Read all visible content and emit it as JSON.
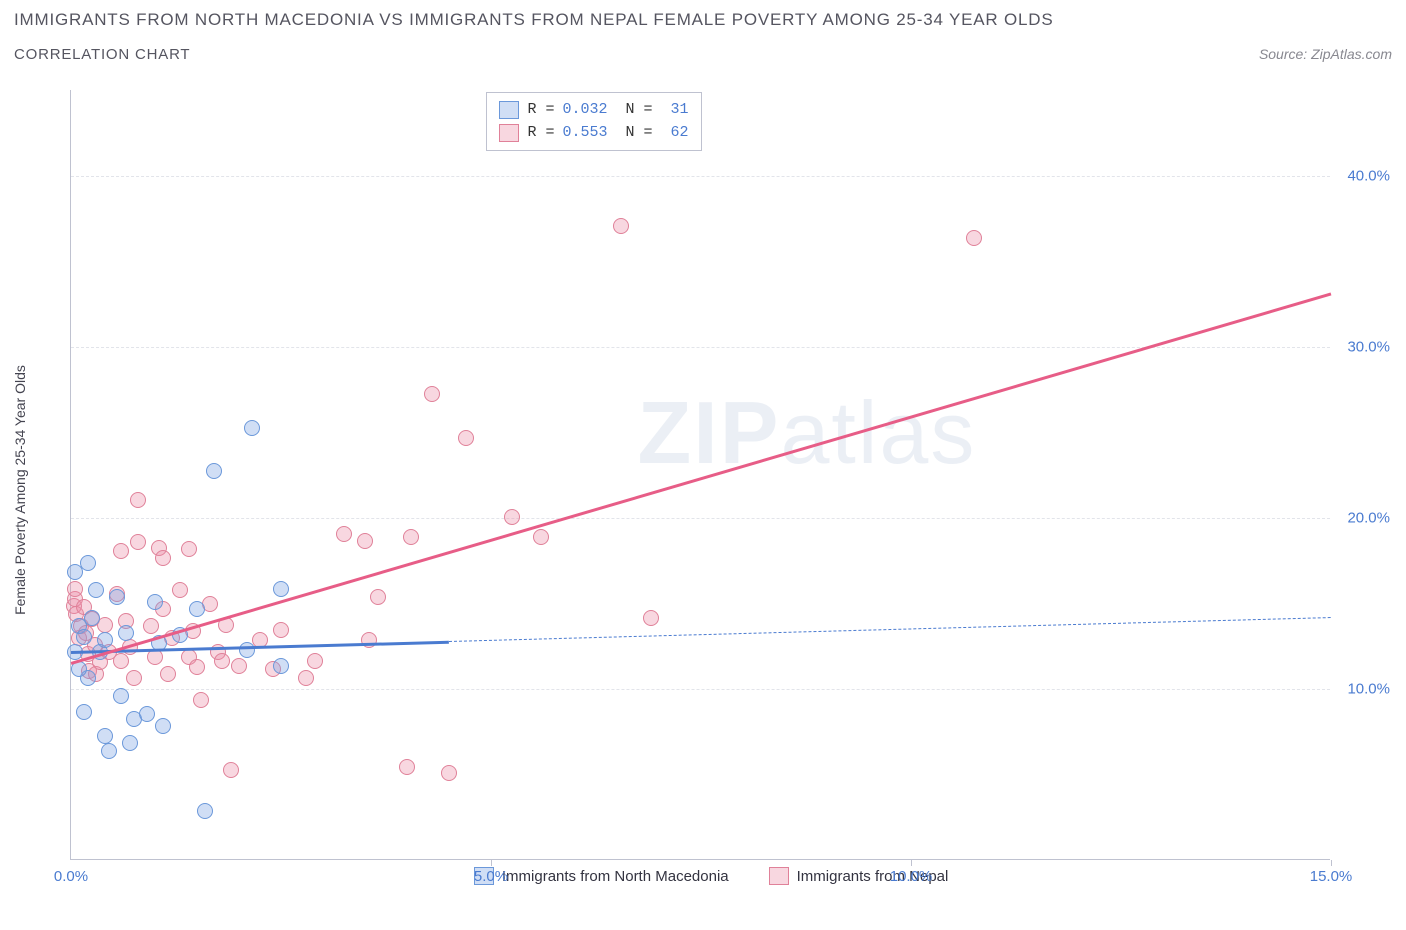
{
  "title": "IMMIGRANTS FROM NORTH MACEDONIA VS IMMIGRANTS FROM NEPAL FEMALE POVERTY AMONG 25-34 YEAR OLDS",
  "subtitle": "CORRELATION CHART",
  "source": "Source: ZipAtlas.com",
  "y_axis_label": "Female Poverty Among 25-34 Year Olds",
  "watermark_bold": "ZIP",
  "watermark_light": "atlas",
  "chart": {
    "xlim": [
      0,
      15
    ],
    "ylim": [
      0,
      45
    ],
    "x_ticks": [
      0.0,
      5.0,
      10.0,
      15.0
    ],
    "x_tick_labels": [
      "0.0%",
      "5.0%",
      "10.0%",
      "15.0%"
    ],
    "y_ticks": [
      10.0,
      20.0,
      30.0,
      40.0
    ],
    "y_tick_labels": [
      "10.0%",
      "20.0%",
      "30.0%",
      "40.0%"
    ],
    "background_color": "#ffffff",
    "grid_color": "#e2e4ea",
    "axis_color": "#bfc2d0",
    "watermark_color": "rgba(120,145,190,0.15)"
  },
  "series": {
    "a": {
      "label": "Immigrants from North Macedonia",
      "color_fill": "rgba(120,160,225,0.35)",
      "color_stroke": "#6b98da",
      "line_color": "#4a7bd0",
      "R": "0.032",
      "N": "31",
      "trend": {
        "x1": 0.0,
        "y1": 12.2,
        "x2": 4.5,
        "y2": 12.8,
        "dash_x2": 15.0,
        "dash_y2": 14.2
      },
      "marker_radius": 8,
      "points": [
        [
          0.05,
          12.1
        ],
        [
          0.05,
          16.8
        ],
        [
          0.1,
          13.6
        ],
        [
          0.15,
          13.0
        ],
        [
          0.15,
          8.6
        ],
        [
          0.2,
          17.3
        ],
        [
          0.25,
          14.1
        ],
        [
          0.3,
          15.7
        ],
        [
          0.35,
          12.1
        ],
        [
          0.4,
          12.8
        ],
        [
          0.4,
          7.2
        ],
        [
          0.55,
          15.3
        ],
        [
          0.6,
          9.5
        ],
        [
          0.65,
          13.2
        ],
        [
          0.7,
          6.8
        ],
        [
          0.75,
          8.2
        ],
        [
          0.9,
          8.5
        ],
        [
          1.0,
          15.0
        ],
        [
          1.05,
          12.6
        ],
        [
          1.1,
          7.8
        ],
        [
          1.3,
          13.1
        ],
        [
          1.5,
          14.6
        ],
        [
          1.6,
          2.8
        ],
        [
          1.7,
          22.7
        ],
        [
          2.1,
          12.2
        ],
        [
          2.15,
          25.2
        ],
        [
          2.5,
          15.8
        ],
        [
          2.5,
          11.3
        ],
        [
          0.45,
          6.3
        ],
        [
          0.2,
          10.6
        ],
        [
          0.1,
          11.1
        ]
      ]
    },
    "b": {
      "label": "Immigrants from Nepal",
      "color_fill": "rgba(235,140,165,0.35)",
      "color_stroke": "#e08199",
      "line_color": "#e75d87",
      "R": "0.553",
      "N": "62",
      "trend": {
        "x1": 0.0,
        "y1": 11.6,
        "x2": 15.0,
        "y2": 33.2
      },
      "marker_radius": 8,
      "points": [
        [
          0.03,
          14.8
        ],
        [
          0.05,
          15.2
        ],
        [
          0.06,
          14.3
        ],
        [
          0.1,
          12.9
        ],
        [
          0.12,
          13.6
        ],
        [
          0.15,
          14.7
        ],
        [
          0.18,
          13.2
        ],
        [
          0.2,
          12.0
        ],
        [
          0.22,
          11.0
        ],
        [
          0.25,
          14.0
        ],
        [
          0.28,
          12.5
        ],
        [
          0.3,
          10.8
        ],
        [
          0.35,
          11.5
        ],
        [
          0.4,
          13.7
        ],
        [
          0.45,
          12.1
        ],
        [
          0.55,
          15.5
        ],
        [
          0.6,
          11.6
        ],
        [
          0.6,
          18.0
        ],
        [
          0.65,
          13.9
        ],
        [
          0.7,
          12.4
        ],
        [
          0.75,
          10.6
        ],
        [
          0.8,
          18.5
        ],
        [
          0.8,
          21.0
        ],
        [
          0.95,
          13.6
        ],
        [
          1.0,
          11.8
        ],
        [
          1.05,
          18.2
        ],
        [
          1.1,
          14.6
        ],
        [
          1.1,
          17.6
        ],
        [
          1.15,
          10.8
        ],
        [
          1.2,
          12.9
        ],
        [
          1.3,
          15.7
        ],
        [
          1.4,
          11.8
        ],
        [
          1.4,
          18.1
        ],
        [
          1.45,
          13.3
        ],
        [
          1.5,
          11.2
        ],
        [
          1.55,
          9.3
        ],
        [
          1.65,
          14.9
        ],
        [
          1.75,
          12.1
        ],
        [
          1.8,
          11.6
        ],
        [
          1.85,
          13.7
        ],
        [
          1.9,
          5.2
        ],
        [
          2.0,
          11.3
        ],
        [
          2.25,
          12.8
        ],
        [
          2.4,
          11.1
        ],
        [
          2.5,
          13.4
        ],
        [
          2.8,
          10.6
        ],
        [
          2.9,
          11.6
        ],
        [
          3.25,
          19.0
        ],
        [
          3.5,
          18.6
        ],
        [
          3.55,
          12.8
        ],
        [
          3.65,
          15.3
        ],
        [
          4.0,
          5.4
        ],
        [
          4.05,
          18.8
        ],
        [
          4.3,
          27.2
        ],
        [
          4.5,
          5.0
        ],
        [
          4.7,
          24.6
        ],
        [
          5.25,
          20.0
        ],
        [
          5.6,
          18.8
        ],
        [
          6.55,
          37.0
        ],
        [
          6.9,
          14.1
        ],
        [
          10.75,
          36.3
        ],
        [
          0.05,
          15.8
        ]
      ]
    }
  },
  "legend_bottom_left_pct": 32
}
